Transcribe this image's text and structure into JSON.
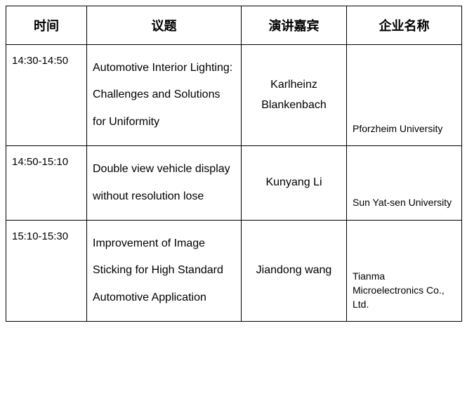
{
  "table": {
    "headers": {
      "time": "时间",
      "topic": "议题",
      "speaker": "演讲嘉宾",
      "company": "企业名称"
    },
    "rows": [
      {
        "time": "14:30-14:50",
        "topic": "Automotive Interior Lighting: Challenges and Solutions for Uniformity",
        "speaker": "Karlheinz Blankenbach",
        "company": "Pforzheim University"
      },
      {
        "time": "14:50-15:10",
        "topic": "Double view vehicle display without resolution lose",
        "speaker": "Kunyang Li",
        "company": "Sun Yat-sen University"
      },
      {
        "time": "15:10-15:30",
        "topic": "Improvement of Image Sticking for High Standard Automotive Application",
        "speaker": "Jiandong wang",
        "company": "Tianma Microelectronics Co., Ltd."
      }
    ],
    "columns": {
      "time_width": 115,
      "topic_width": 220,
      "speaker_width": 150,
      "company_width": 164
    },
    "colors": {
      "border": "#000000",
      "text": "#000000",
      "background": "#ffffff"
    },
    "typography": {
      "header_fontsize": 18,
      "header_weight": "bold",
      "body_fontsize": 15,
      "topic_fontsize": 16,
      "speaker_fontsize": 16,
      "company_fontsize": 14,
      "topic_line_height": 2.4
    }
  }
}
